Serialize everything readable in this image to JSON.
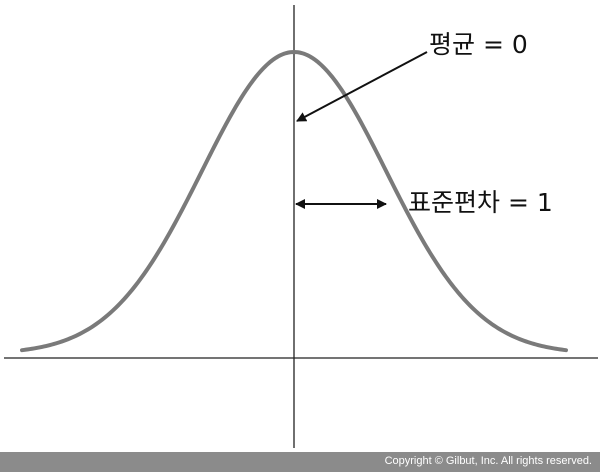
{
  "labels": {
    "mean": "평균 = 0",
    "std_dev": "표준편차 = 1"
  },
  "footer": {
    "copyright": "Copyright © Gilbut, Inc. All rights reserved."
  },
  "colors": {
    "curve": "#7a7a7a",
    "axis": "#222222",
    "arrow": "#111111",
    "footer_bg": "#8b8b8b"
  }
}
